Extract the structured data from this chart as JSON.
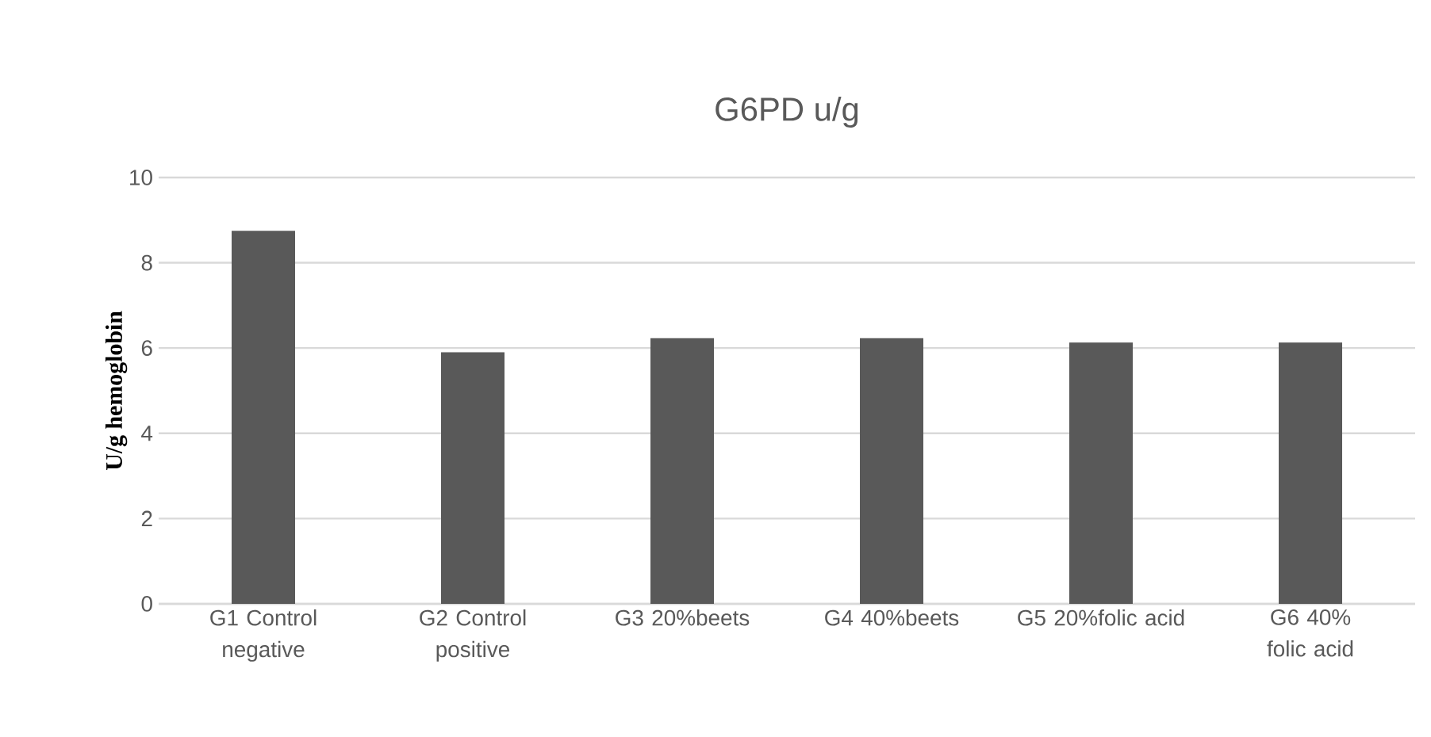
{
  "chart_data": {
    "type": "bar",
    "title": "G6PD u/g",
    "ylabel": "U/g hemoglobin",
    "categories": [
      "G1 Control negative",
      "G2 Control positive",
      "G3 20%beets",
      "G4 40%beets",
      "G5 20%folic acid",
      "G6 40% folic acid"
    ],
    "values": [
      8.75,
      5.9,
      6.23,
      6.23,
      6.13,
      6.13
    ],
    "color": "#595959",
    "ylim": [
      0,
      10
    ],
    "yticks": [
      0,
      2,
      4,
      6,
      8,
      10
    ],
    "grid": "y"
  }
}
